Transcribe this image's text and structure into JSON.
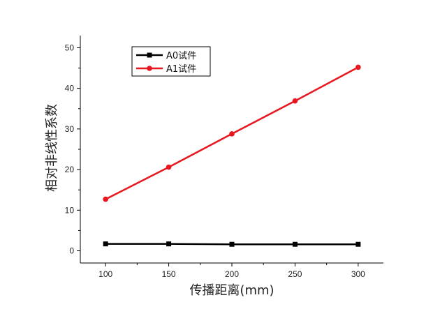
{
  "chart_data": {
    "type": "line",
    "title": "",
    "xlabel": "传播距离(mm)",
    "ylabel": "相对非线性系数",
    "xlim": [
      80,
      320
    ],
    "ylim": [
      -3,
      53
    ],
    "x_ticks": [
      100,
      150,
      200,
      250,
      300
    ],
    "y_ticks": [
      0,
      10,
      20,
      30,
      40,
      50
    ],
    "grid": false,
    "legend_position": "top-left",
    "x": [
      100,
      150,
      200,
      250,
      300
    ],
    "series": [
      {
        "name": "A0试件",
        "color": "#000000",
        "marker": "square",
        "values": [
          1.7,
          1.7,
          1.6,
          1.6,
          1.6
        ]
      },
      {
        "name": "A1试件",
        "color": "#e8171f",
        "marker": "circle",
        "values": [
          12.7,
          20.6,
          28.8,
          36.9,
          45.2
        ]
      }
    ]
  }
}
